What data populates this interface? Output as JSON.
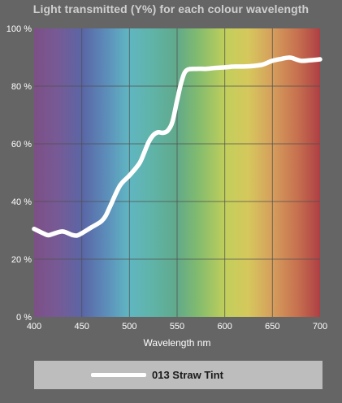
{
  "chart_data": {
    "type": "line",
    "title": "Light transmitted (Y%) for each colour wavelength",
    "xlabel": "Wavelength nm",
    "ylabel": "",
    "xlim": [
      400,
      700
    ],
    "ylim": [
      0,
      100
    ],
    "x_ticks": [
      "400",
      "450",
      "500",
      "550",
      "600",
      "650",
      "700"
    ],
    "y_ticks": [
      "0 %",
      "20 %",
      "40 %",
      "60 %",
      "80 %",
      "100 %"
    ],
    "grid": true,
    "background": "visible spectrum gradient",
    "legend_position": "bottom",
    "series": [
      {
        "name": "013 Straw Tint",
        "color": "#ffffff",
        "x": [
          400,
          410,
          415,
          420,
          430,
          440,
          445,
          450,
          460,
          470,
          475,
          480,
          490,
          500,
          510,
          515,
          520,
          525,
          530,
          535,
          540,
          545,
          550,
          555,
          560,
          570,
          580,
          590,
          600,
          610,
          620,
          630,
          640,
          650,
          660,
          665,
          670,
          680,
          690,
          700
        ],
        "y": [
          30.5,
          28.9,
          28.3,
          28.8,
          29.6,
          28.4,
          28.2,
          29,
          31,
          33,
          35,
          38.5,
          45.5,
          49,
          53,
          56.5,
          60.5,
          63,
          64,
          63.8,
          64.5,
          67.5,
          75,
          82,
          85.5,
          86,
          86,
          86.3,
          86.5,
          86.8,
          86.8,
          87,
          87.5,
          88.8,
          89.5,
          89.8,
          89.8,
          88.8,
          89,
          89.3
        ]
      }
    ]
  },
  "legend": {
    "label": "013 Straw Tint"
  }
}
